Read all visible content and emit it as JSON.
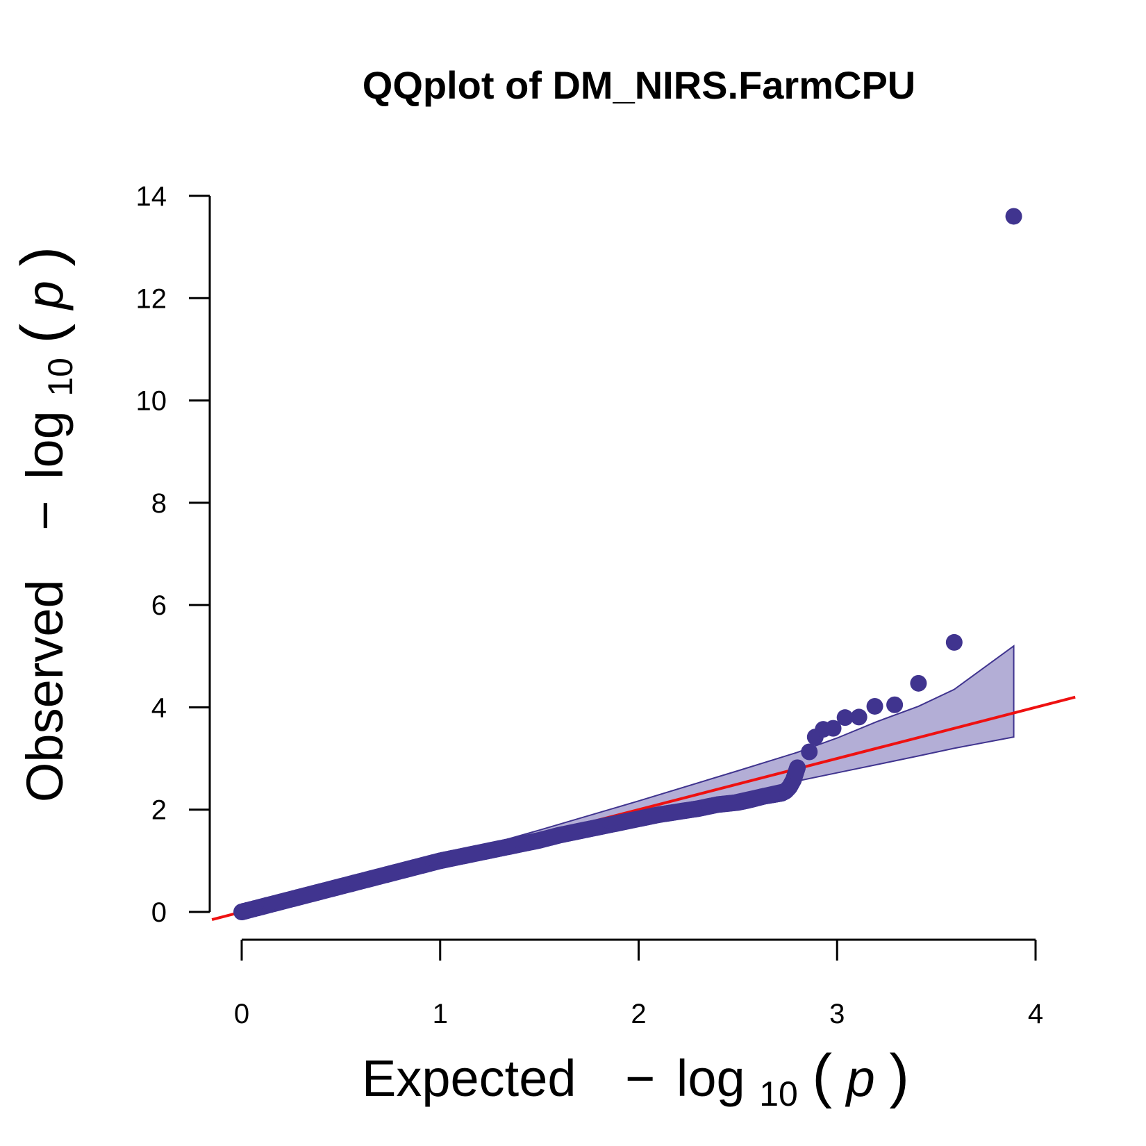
{
  "chart_data": {
    "type": "scatter",
    "title": "QQplot of DM_NIRS.FarmCPU",
    "xlabel": {
      "prefix": "Expected",
      "minus": "−",
      "log": "log",
      "sub": "10",
      "open": "(",
      "var": "p",
      "close": ")"
    },
    "ylabel": {
      "prefix": "Observed",
      "minus": "−",
      "log": "log",
      "sub": "10",
      "open": "(",
      "var": "p",
      "close": ")"
    },
    "xlim": [
      0,
      4
    ],
    "ylim": [
      0,
      14
    ],
    "x_ticks": [
      0,
      1,
      2,
      3,
      4
    ],
    "y_ticks": [
      0,
      2,
      4,
      6,
      8,
      10,
      12,
      14
    ],
    "grid": false,
    "colors": {
      "points": "#40348f",
      "reference_line": "#ee1111",
      "band_fill": "#b3aed6",
      "band_edge": "#40348f",
      "axes": "#000000"
    },
    "reference_line": {
      "slope": 1,
      "intercept": 0
    },
    "confidence_band": {
      "x": [
        0.0,
        0.5,
        1.0,
        1.5,
        2.0,
        2.5,
        2.8,
        3.0,
        3.2,
        3.41,
        3.59,
        3.89
      ],
      "upper": [
        0.0,
        0.52,
        1.05,
        1.6,
        2.17,
        2.76,
        3.12,
        3.4,
        3.72,
        4.02,
        4.35,
        5.2
      ],
      "lower": [
        0.0,
        0.48,
        0.96,
        1.42,
        1.86,
        2.3,
        2.56,
        2.72,
        2.88,
        3.05,
        3.2,
        3.42
      ]
    },
    "points": {
      "x": [
        0.0,
        0.01,
        0.02,
        0.03,
        0.05,
        0.07,
        0.1,
        0.13,
        0.16,
        0.2,
        0.24,
        0.28,
        0.32,
        0.36,
        0.4,
        0.45,
        0.5,
        0.55,
        0.6,
        0.65,
        0.7,
        0.75,
        0.8,
        0.85,
        0.9,
        0.95,
        1.0,
        1.05,
        1.1,
        1.15,
        1.2,
        1.25,
        1.3,
        1.35,
        1.4,
        1.45,
        1.5,
        1.55,
        1.6,
        1.65,
        1.7,
        1.75,
        1.8,
        1.85,
        1.9,
        1.95,
        2.0,
        2.05,
        2.1,
        2.15,
        2.2,
        2.25,
        2.3,
        2.35,
        2.4,
        2.45,
        2.5,
        2.55,
        2.6,
        2.63,
        2.66,
        2.69,
        2.72,
        2.74,
        2.76,
        2.78,
        2.8,
        2.86,
        2.89,
        2.93,
        2.98,
        3.04,
        3.11,
        3.19,
        3.29,
        3.41,
        3.59,
        3.89
      ],
      "y": [
        0.0,
        0.01,
        0.02,
        0.03,
        0.05,
        0.07,
        0.1,
        0.13,
        0.16,
        0.2,
        0.24,
        0.28,
        0.32,
        0.36,
        0.4,
        0.45,
        0.5,
        0.55,
        0.6,
        0.65,
        0.7,
        0.75,
        0.8,
        0.85,
        0.9,
        0.95,
        1.0,
        1.04,
        1.08,
        1.12,
        1.16,
        1.2,
        1.24,
        1.28,
        1.32,
        1.36,
        1.4,
        1.45,
        1.5,
        1.54,
        1.58,
        1.62,
        1.66,
        1.7,
        1.74,
        1.78,
        1.82,
        1.86,
        1.9,
        1.93,
        1.96,
        1.99,
        2.02,
        2.06,
        2.1,
        2.12,
        2.14,
        2.18,
        2.23,
        2.26,
        2.28,
        2.3,
        2.32,
        2.36,
        2.44,
        2.58,
        2.82,
        3.13,
        3.42,
        3.57,
        3.59,
        3.8,
        3.81,
        4.02,
        4.05,
        4.47,
        5.27,
        13.6
      ]
    }
  }
}
